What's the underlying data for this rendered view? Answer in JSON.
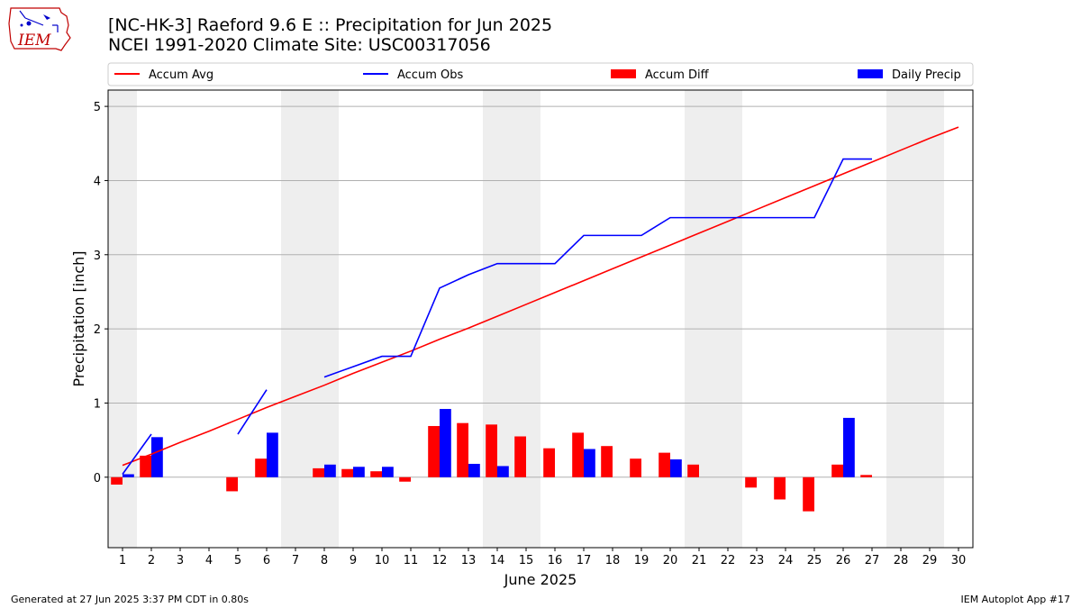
{
  "logo": {
    "text": "IEM",
    "color": "#c00000"
  },
  "title_line1": "[NC-HK-3] Raeford 9.6 E :: Precipitation for Jun 2025",
  "title_line2": "NCEI 1991-2020 Climate Site: USC00317056",
  "footer_left": "Generated at 27 Jun 2025 3:37 PM CDT in 0.80s",
  "footer_right": "IEM Autoplot App #17",
  "chart_data": {
    "type": "bar",
    "xlabel": "June 2025",
    "ylabel": "Precipitation [inch]",
    "xlim": [
      0.5,
      30.5
    ],
    "ylim": [
      -0.95,
      5.22
    ],
    "yticks": [
      0,
      1,
      2,
      3,
      4,
      5
    ],
    "grid": "horizontal",
    "legend_placement": "top, above plot",
    "x": [
      1,
      2,
      3,
      4,
      5,
      6,
      7,
      8,
      9,
      10,
      11,
      12,
      13,
      14,
      15,
      16,
      17,
      18,
      19,
      20,
      21,
      22,
      23,
      24,
      25,
      26,
      27,
      28,
      29,
      30
    ],
    "weekend_shading": [
      [
        0.5,
        1.5
      ],
      [
        6.5,
        8.5
      ],
      [
        13.5,
        15.5
      ],
      [
        20.5,
        22.5
      ],
      [
        27.5,
        29.5
      ]
    ],
    "shade_color": "#eeeeee",
    "series": [
      {
        "name": "Accum Avg",
        "kind": "line",
        "color": "#ff0000",
        "values": [
          0.16,
          0.31,
          0.47,
          0.62,
          0.78,
          0.94,
          1.09,
          1.24,
          1.4,
          1.55,
          1.7,
          1.86,
          2.01,
          2.17,
          2.33,
          2.49,
          2.65,
          2.81,
          2.97,
          3.13,
          3.29,
          3.45,
          3.61,
          3.77,
          3.93,
          4.09,
          4.25,
          4.41,
          4.57,
          4.72
        ]
      },
      {
        "name": "Accum Obs",
        "kind": "line",
        "color": "#0000ff",
        "values": [
          0.04,
          0.58,
          null,
          null,
          0.58,
          1.18,
          null,
          1.35,
          1.49,
          1.63,
          1.63,
          2.55,
          2.73,
          2.88,
          2.88,
          2.88,
          3.26,
          3.26,
          3.26,
          3.5,
          3.5,
          3.5,
          3.5,
          3.5,
          3.5,
          4.29,
          4.29,
          null,
          null,
          null
        ]
      },
      {
        "name": "Accum Diff",
        "kind": "bar",
        "color": "#ff0000",
        "values": [
          -0.1,
          0.29,
          null,
          null,
          -0.19,
          0.25,
          null,
          0.12,
          0.11,
          0.08,
          -0.06,
          0.69,
          0.73,
          0.71,
          0.55,
          0.39,
          0.6,
          0.42,
          0.25,
          0.33,
          0.17,
          null,
          -0.14,
          -0.3,
          -0.46,
          0.17,
          0.03,
          null,
          null,
          null
        ]
      },
      {
        "name": "Daily Precip",
        "kind": "bar",
        "color": "#0000ff",
        "values": [
          0.04,
          0.54,
          0,
          0,
          0,
          0.6,
          0,
          0.17,
          0.14,
          0.14,
          0,
          0.92,
          0.18,
          0.15,
          0,
          0,
          0.38,
          0,
          0,
          0.24,
          0,
          0,
          0,
          0,
          0,
          0.8,
          0,
          null,
          null,
          null
        ]
      }
    ]
  }
}
